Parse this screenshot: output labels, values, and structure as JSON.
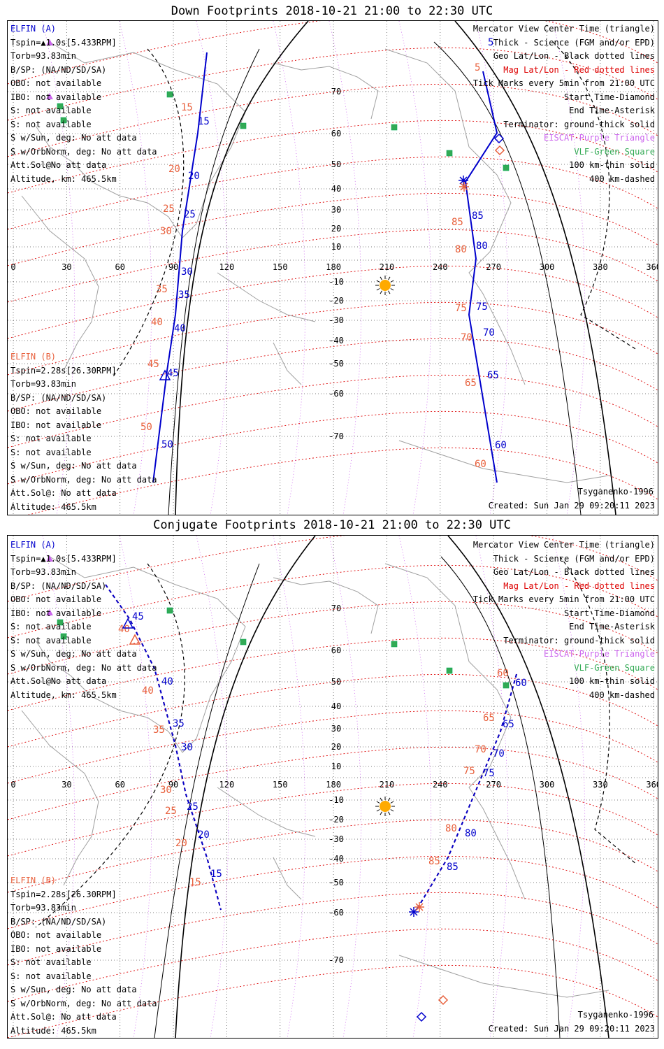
{
  "panels": [
    {
      "title": "Down Footprints 2018-10-21 21:00 to 22:30 UTC",
      "elfin_a": {
        "name": "ELFIN (A)",
        "lines": [
          "Tspin=▲1.0s[5.433RPM]",
          "Torb=93.83min",
          "B/SP: (NA/ND/SD/SA)",
          "OBO: not available",
          "IBO: not available",
          "S: not available",
          "S: not available",
          "S w/Sun, deg: No att data",
          "S w/OrbNorm, deg: No att data",
          "Att.Sol@No att data",
          "Altitude, km: 465.5km"
        ]
      },
      "elfin_b": {
        "name": "ELFIN (B)",
        "lines": [
          "Tspin=2.28s[26.30RPM]",
          "Torb=93.83min",
          "B/SP: (NA/ND/SD/SA)",
          "OBO: not available",
          "IBO: not available",
          "S: not available",
          "S: not available",
          "S w/Sun, deg: No att data",
          "S w/OrbNorm, deg: No att data",
          "Att.Sol@: No att data",
          "Altitude: 465.5km"
        ]
      },
      "track_labels_a": [
        "5",
        "15",
        "20",
        "25",
        "30",
        "35",
        "40",
        "45",
        "50",
        "85",
        "80",
        "75",
        "70",
        "65",
        "60"
      ],
      "track_labels_b": [
        "5",
        "15",
        "20",
        "25",
        "30",
        "35",
        "40",
        "45",
        "50",
        "85",
        "80",
        "75",
        "70",
        "65",
        "60"
      ]
    },
    {
      "title": "Conjugate Footprints 2018-10-21 21:00 to 22:30 UTC",
      "elfin_a": {
        "name": "ELFIN (A)",
        "lines": [
          "Tspin=▲1.0s[5.433RPM]",
          "Torb=93.83min",
          "B/SP: (NA/ND/SD/SA)",
          "OBO: not available",
          "IBO: not available",
          "S: not available",
          "S: not available",
          "S w/Sun, deg: No att data",
          "S w/OrbNorm, deg: No att data",
          "Att.Sol@No att data",
          "Altitude, km: 465.5km"
        ]
      },
      "elfin_b": {
        "name": "ELFIN (B)",
        "lines": [
          "Tspin=2.28s[26.30RPM]",
          "Torb=93.83min",
          "B/SP: (NA/ND/SD/SA)",
          "OBO: not available",
          "IBO: not available",
          "S: not available",
          "S: not available",
          "S w/Sun, deg: No att data",
          "S w/OrbNorm, deg: No att data",
          "Att.Sol@: No att data",
          "Altitude: 465.5km"
        ]
      },
      "track_labels_a": [
        "45",
        "40",
        "35",
        "30",
        "25",
        "20",
        "15",
        "60",
        "65",
        "70",
        "75",
        "80",
        "85"
      ],
      "track_labels_b": [
        "45",
        "40",
        "35",
        "30",
        "25",
        "20",
        "15",
        "60",
        "65",
        "70",
        "75",
        "80",
        "85"
      ]
    }
  ],
  "legend": [
    {
      "text": "Mercator View Center Time (triangle)",
      "color": "#000000"
    },
    {
      "text": "Thick - Science (FGM and/or EPD)",
      "color": "#000000"
    },
    {
      "text": "Geo Lat/Lon - Black dotted lines",
      "color": "#000000"
    },
    {
      "text": "Mag Lat/Lon - Red dotted lines",
      "color": "#dd0000"
    },
    {
      "text": "Tick Marks every 5min from 21:00 UTC",
      "color": "#000000"
    },
    {
      "text": "Start Time-Diamond",
      "color": "#000000"
    },
    {
      "text": "End Time-Asterisk",
      "color": "#000000"
    },
    {
      "text": "Terminator: ground-thick solid",
      "color": "#000000"
    },
    {
      "text": "EISCAT-Purple Triangle",
      "color": "#cc66ee"
    },
    {
      "text": "VLF-Green Square",
      "color": "#33aa55"
    },
    {
      "text": "100 km-thin solid",
      "color": "#000000"
    },
    {
      "text": "400 km-dashed",
      "color": "#000000"
    }
  ],
  "lon_ticks": [
    "0",
    "30",
    "60",
    "90",
    "120",
    "150",
    "180",
    "210",
    "240",
    "270",
    "300",
    "330",
    "360"
  ],
  "lat_ticks": [
    "70",
    "60",
    "50",
    "40",
    "30",
    "20",
    "10",
    "-10",
    "-20",
    "-30",
    "-40",
    "-50",
    "-60",
    "-70"
  ],
  "model": "Tsyganenko-1996",
  "created": "Created: Sun Jan 29 09:20:11 2023",
  "colors": {
    "elfin_a": "#0000cc",
    "elfin_b": "#e8603c",
    "mag_grid": "#dd0000",
    "geo_grid": "#000000",
    "eiscat": "#cc66ee",
    "vlf": "#33aa55",
    "sun": "#ffaa00",
    "coast": "#a0a0a0"
  }
}
